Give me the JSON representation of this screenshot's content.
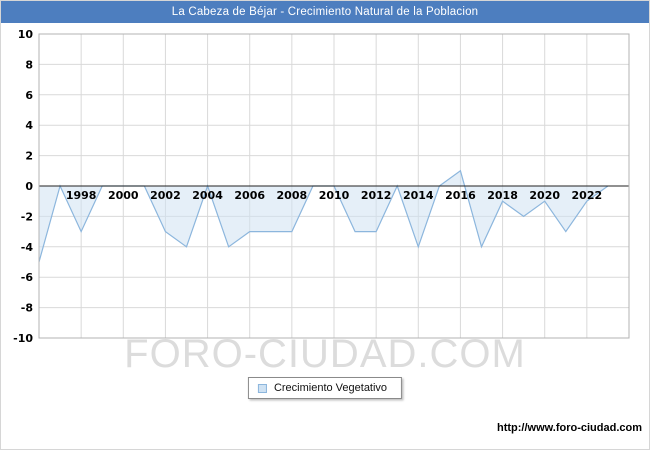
{
  "header": {
    "bg_color": "#4d7ebf"
  },
  "chart_data": {
    "type": "area",
    "title": "La Cabeza de Béjar - Crecimiento Natural de la Poblacion",
    "xlabel": "",
    "ylabel": "",
    "xlim": [
      1996,
      2024
    ],
    "ylim": [
      -10,
      10
    ],
    "yticks": [
      10,
      8,
      6,
      4,
      2,
      0,
      -2,
      -4,
      -6,
      -8,
      -10
    ],
    "xticks": [
      1998,
      2000,
      2002,
      2004,
      2006,
      2008,
      2010,
      2012,
      2014,
      2016,
      2018,
      2020,
      2022
    ],
    "grid": true,
    "legend_position": "bottom-center",
    "grid_color": "#d9d9d9",
    "frame_color": "#b3b3b3",
    "axis_color": "#222222",
    "fill_color": "#cfe2f3",
    "line_color": "#8cb6dd",
    "series": [
      {
        "name": "Crecimiento Vegetativo",
        "x": [
          1996,
          1997,
          1998,
          1999,
          2000,
          2001,
          2002,
          2003,
          2004,
          2005,
          2006,
          2007,
          2008,
          2009,
          2010,
          2011,
          2012,
          2013,
          2014,
          2015,
          2016,
          2017,
          2018,
          2019,
          2020,
          2021,
          2022,
          2023
        ],
        "values": [
          -5,
          0,
          -3,
          0,
          0,
          0,
          -3,
          -4,
          0,
          -4,
          -3,
          -3,
          -3,
          0,
          0,
          -3,
          -3,
          0,
          -4,
          0,
          1,
          -4,
          -1,
          -2,
          -1,
          -3,
          -1,
          0
        ]
      }
    ]
  },
  "watermark": {
    "text": "FORO-CIUDAD.COM"
  },
  "footer": {
    "url_text": "http://www.foro-ciudad.com"
  }
}
